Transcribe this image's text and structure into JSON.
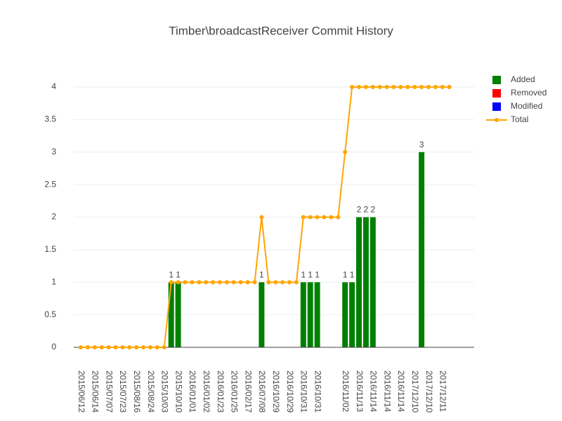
{
  "chart_data": {
    "type": "bar",
    "title": "Timber\\broadcastReceiver Commit History",
    "categories": [
      "2015/06/12",
      null,
      "2015/06/14",
      null,
      "2015/07/07",
      null,
      "2015/07/23",
      null,
      "2015/08/16",
      null,
      "2015/08/24",
      null,
      "2015/10/03",
      null,
      "2015/10/10",
      null,
      "2016/01/01",
      null,
      "2016/01/02",
      null,
      "2016/01/23",
      null,
      "2016/01/25",
      null,
      "2016/02/17",
      null,
      "2016/07/08",
      null,
      "2016/10/29",
      null,
      "2016/10/29",
      null,
      "2016/10/31",
      null,
      "2016/10/31",
      null,
      null,
      null,
      "2016/11/02",
      null,
      "2016/11/13",
      null,
      "2016/11/14",
      null,
      "2016/11/14",
      null,
      "2016/11/14",
      null,
      "2017/12/10",
      null,
      "2017/12/10",
      null,
      "2017/12/11",
      null
    ],
    "series": [
      {
        "name": "Added",
        "color": "#008000",
        "values": [
          0,
          0,
          0,
          0,
          0,
          0,
          0,
          0,
          0,
          0,
          0,
          0,
          0,
          1,
          1,
          0,
          0,
          0,
          0,
          0,
          0,
          0,
          0,
          0,
          0,
          0,
          1,
          0,
          0,
          0,
          0,
          0,
          1,
          1,
          1,
          0,
          0,
          0,
          1,
          1,
          2,
          2,
          2,
          0,
          0,
          0,
          0,
          0,
          0,
          3,
          0,
          0,
          0,
          0
        ]
      },
      {
        "name": "Removed",
        "color": "#ff0000",
        "values": [
          0,
          0,
          0,
          0,
          0,
          0,
          0,
          0,
          0,
          0,
          0,
          0,
          0,
          0,
          0,
          0,
          0,
          0,
          0,
          0,
          0,
          0,
          0,
          0,
          0,
          0,
          0,
          0,
          0,
          0,
          0,
          0,
          0,
          0,
          0,
          0,
          0,
          0,
          0,
          0,
          0,
          0,
          0,
          0,
          0,
          0,
          0,
          0,
          0,
          0,
          0,
          0,
          0,
          0
        ]
      },
      {
        "name": "Modified",
        "color": "#0000ff",
        "values": [
          0,
          0,
          0,
          0,
          0,
          0,
          0,
          0,
          0,
          0,
          0,
          0,
          0,
          0,
          0,
          0,
          0,
          0,
          0,
          0,
          0,
          0,
          0,
          0,
          0,
          0,
          0,
          0,
          0,
          0,
          0,
          0,
          0,
          0,
          0,
          0,
          0,
          0,
          0,
          0,
          0,
          0,
          0,
          0,
          0,
          0,
          0,
          0,
          0,
          0,
          0,
          0,
          0,
          0
        ]
      },
      {
        "name": "Total",
        "type": "line",
        "color": "#ffa500",
        "values": [
          0,
          0,
          0,
          0,
          0,
          0,
          0,
          0,
          0,
          0,
          0,
          0,
          0,
          1,
          1,
          1,
          1,
          1,
          1,
          1,
          1,
          1,
          1,
          1,
          1,
          1,
          2,
          1,
          1,
          1,
          1,
          1,
          2,
          2,
          2,
          2,
          2,
          2,
          3,
          4,
          4,
          4,
          4,
          4,
          4,
          4,
          4,
          4,
          4,
          4,
          4,
          4,
          4,
          4
        ]
      }
    ],
    "ylim": [
      0,
      4
    ],
    "yticks": [
      0,
      0.5,
      1,
      1.5,
      2,
      2.5,
      3,
      3.5,
      4
    ],
    "grid": true,
    "legend": "right"
  }
}
